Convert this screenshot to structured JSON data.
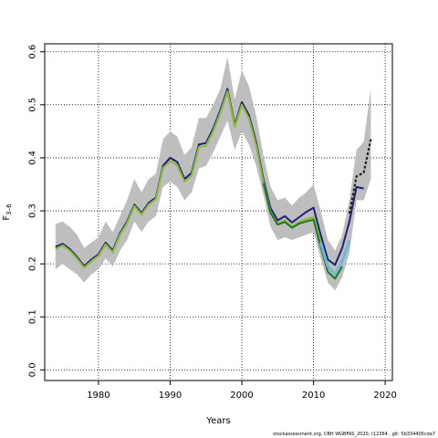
{
  "chart_data": {
    "type": "line",
    "xlabel": "Years",
    "ylabel": "F",
    "ylabel_subscript": "3–6",
    "xlim": [
      1972.5,
      2021.0
    ],
    "ylim": [
      -0.02,
      0.615
    ],
    "x_ticks": [
      "1980",
      "1990",
      "2000",
      "2010",
      "2020"
    ],
    "x_tick_values": [
      1980,
      1990,
      2000,
      2010,
      2020
    ],
    "y_ticks": [
      "0.0",
      "0.1",
      "0.2",
      "0.3",
      "0.4",
      "0.5",
      "0.6"
    ],
    "y_tick_values": [
      0.0,
      0.1,
      0.2,
      0.3,
      0.4,
      0.5,
      0.6
    ],
    "grid": true,
    "grid_style": "dotted",
    "confidence_band": {
      "color": "#bebebe",
      "x": [
        1974,
        1975,
        1976,
        1977,
        1978,
        1979,
        1980,
        1981,
        1982,
        1983,
        1984,
        1985,
        1986,
        1987,
        1988,
        1989,
        1990,
        1991,
        1992,
        1993,
        1994,
        1995,
        1996,
        1997,
        1998,
        1999,
        2000,
        2001,
        2002,
        2003,
        2004,
        2005,
        2006,
        2007,
        2008,
        2009,
        2010,
        2011,
        2012,
        2013,
        2014,
        2015,
        2016,
        2017,
        2018
      ],
      "lower": [
        0.19,
        0.2,
        0.19,
        0.18,
        0.165,
        0.18,
        0.19,
        0.21,
        0.195,
        0.225,
        0.245,
        0.28,
        0.26,
        0.28,
        0.29,
        0.345,
        0.355,
        0.345,
        0.32,
        0.335,
        0.38,
        0.385,
        0.41,
        0.44,
        0.47,
        0.415,
        0.45,
        0.425,
        0.385,
        0.33,
        0.27,
        0.245,
        0.25,
        0.245,
        0.25,
        0.255,
        0.26,
        0.21,
        0.165,
        0.15,
        0.175,
        0.22,
        0.32,
        0.32,
        0.36
      ],
      "upper": [
        0.275,
        0.28,
        0.27,
        0.255,
        0.23,
        0.24,
        0.25,
        0.28,
        0.26,
        0.29,
        0.32,
        0.36,
        0.335,
        0.36,
        0.37,
        0.435,
        0.45,
        0.44,
        0.405,
        0.42,
        0.475,
        0.475,
        0.5,
        0.53,
        0.59,
        0.51,
        0.565,
        0.535,
        0.48,
        0.405,
        0.345,
        0.32,
        0.325,
        0.31,
        0.325,
        0.335,
        0.35,
        0.3,
        0.245,
        0.225,
        0.255,
        0.32,
        0.415,
        0.43,
        0.53
      ]
    },
    "series": [
      {
        "color": "#1f1f7a",
        "width": 2.0,
        "x": [
          1974,
          1975,
          1976,
          1977,
          1978,
          1979,
          1980,
          1981,
          1982,
          1983,
          1984,
          1985,
          1986,
          1987,
          1988,
          1989,
          1990,
          1991,
          1992,
          1993,
          1994,
          1995,
          1996,
          1997,
          1998,
          1999,
          2000,
          2001,
          2002,
          2003,
          2004,
          2005,
          2006,
          2007,
          2008,
          2009,
          2010,
          2011,
          2012,
          2013,
          2014,
          2015,
          2016,
          2017
        ],
        "values": [
          0.232,
          0.238,
          0.228,
          0.213,
          0.196,
          0.208,
          0.218,
          0.24,
          0.225,
          0.258,
          0.28,
          0.312,
          0.296,
          0.315,
          0.325,
          0.385,
          0.4,
          0.392,
          0.36,
          0.372,
          0.425,
          0.428,
          0.455,
          0.49,
          0.53,
          0.462,
          0.505,
          0.48,
          0.43,
          0.36,
          0.305,
          0.282,
          0.29,
          0.278,
          0.288,
          0.298,
          0.306,
          0.255,
          0.208,
          0.198,
          0.23,
          0.28,
          0.345,
          0.342
        ]
      },
      {
        "color": "#8fb838",
        "width": 2.2,
        "x": [
          1974,
          1975,
          1976,
          1977,
          1978,
          1979,
          1980,
          1981,
          1982,
          1983,
          1984,
          1985,
          1986,
          1987,
          1988,
          1989,
          1990,
          1991,
          1992,
          1993,
          1994,
          1995,
          1996,
          1997,
          1998,
          1999,
          2000,
          2001,
          2002,
          2003,
          2004,
          2005,
          2006,
          2007,
          2008,
          2009,
          2010,
          2011
        ],
        "values": [
          0.228,
          0.235,
          0.225,
          0.21,
          0.193,
          0.205,
          0.215,
          0.237,
          0.222,
          0.255,
          0.277,
          0.309,
          0.293,
          0.312,
          0.322,
          0.381,
          0.394,
          0.386,
          0.355,
          0.367,
          0.42,
          0.423,
          0.45,
          0.485,
          0.525,
          0.458,
          0.5,
          0.474,
          0.424,
          0.353,
          0.298,
          0.275,
          0.282,
          0.27,
          0.279,
          0.284,
          0.288,
          0.24
        ]
      },
      {
        "color": "#1e7a1e",
        "width": 2.0,
        "x": [
          2003,
          2004,
          2005,
          2006,
          2007,
          2008,
          2009,
          2010,
          2011,
          2012,
          2013,
          2014
        ],
        "values": [
          0.352,
          0.296,
          0.274,
          0.279,
          0.268,
          0.276,
          0.28,
          0.283,
          0.232,
          0.185,
          0.172,
          0.195
        ]
      },
      {
        "color": "#6fb8d8",
        "width": 3.0,
        "x": [
          2011,
          2012,
          2013,
          2014,
          2015
        ],
        "values": [
          0.24,
          0.195,
          0.18,
          0.205,
          0.245
        ]
      },
      {
        "color": "#222222",
        "width": 2.2,
        "dash": "3,2",
        "x": [
          2015,
          2016,
          2017,
          2018
        ],
        "values": [
          0.295,
          0.365,
          0.372,
          0.435
        ]
      }
    ]
  },
  "footer": {
    "note": "stockassessment.org, CBH  WGBFAS_2020, r12364 , git: 5b334405cda7"
  }
}
